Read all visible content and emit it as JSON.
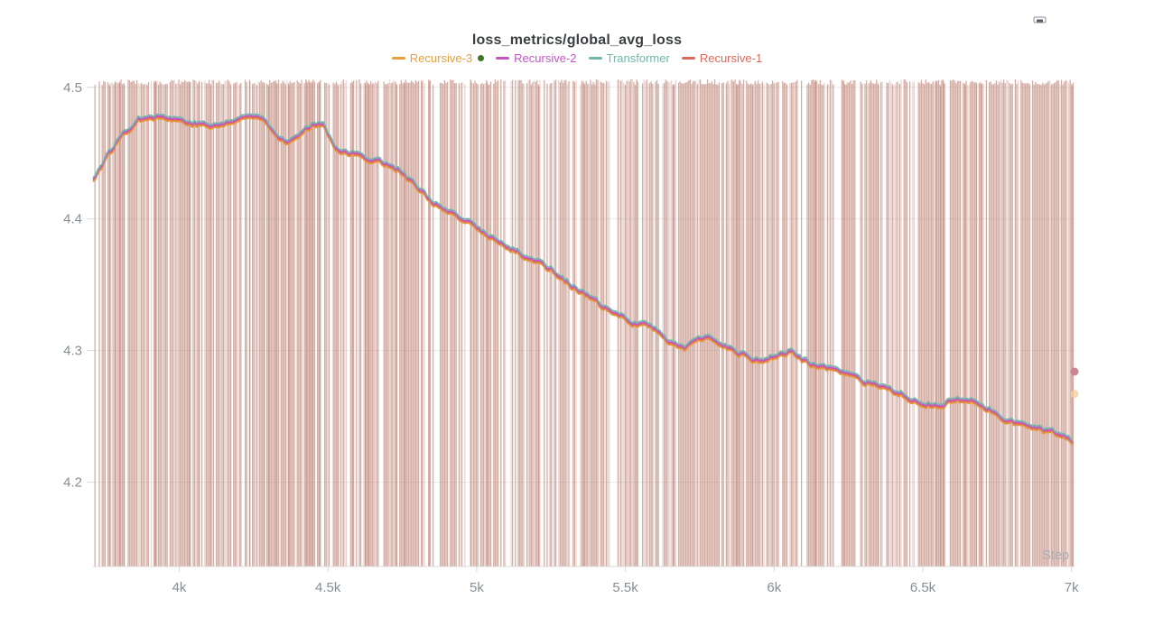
{
  "panel": {
    "title": "loss_metrics/global_avg_loss",
    "step_label": "Step",
    "corner_icon": "panel-options"
  },
  "legend": {
    "items": [
      {
        "label": "Recursive-3",
        "color": "#E5A03C"
      },
      {
        "label": "Recursive-2",
        "color": "#C356C4"
      },
      {
        "label": "Transformer",
        "color": "#74B6AB"
      },
      {
        "label": "Recursive-1",
        "color": "#DF685C"
      }
    ],
    "dot_marker": {
      "color": "#3E7823",
      "position_after": "Recursive-3"
    }
  },
  "chart_data": {
    "type": "line",
    "title": "loss_metrics/global_avg_loss",
    "xlabel": "Step",
    "ylabel": "",
    "xlim": [
      3710,
      7010
    ],
    "ylim": [
      4.136,
      4.506
    ],
    "grid": "horizontal-faint",
    "legend_position": "top-center",
    "xticks": [
      {
        "value": 4000,
        "label": "4k"
      },
      {
        "value": 4500,
        "label": "4.5k"
      },
      {
        "value": 5000,
        "label": "5k"
      },
      {
        "value": 5500,
        "label": "5.5k"
      },
      {
        "value": 6000,
        "label": "6k"
      },
      {
        "value": 6500,
        "label": "6.5k"
      },
      {
        "value": 7000,
        "label": "7k"
      }
    ],
    "yticks": [
      {
        "value": 4.5,
        "label": "4.5"
      },
      {
        "value": 4.4,
        "label": "4.4"
      },
      {
        "value": 4.3,
        "label": "4.3"
      },
      {
        "value": 4.2,
        "label": "4.2"
      }
    ],
    "x": [
      3710,
      3760,
      3810,
      3860,
      3900,
      3950,
      4000,
      4060,
      4120,
      4180,
      4240,
      4290,
      4330,
      4370,
      4410,
      4450,
      4480,
      4520,
      4560,
      4620,
      4680,
      4740,
      4800,
      4860,
      4920,
      4980,
      5040,
      5100,
      5160,
      5220,
      5280,
      5340,
      5400,
      5460,
      5520,
      5580,
      5640,
      5700,
      5760,
      5820,
      5880,
      5940,
      6000,
      6060,
      6120,
      6180,
      6240,
      6300,
      6360,
      6420,
      6480,
      6540,
      6600,
      6660,
      6720,
      6780,
      6840,
      6900,
      6950,
      7000
    ],
    "smoothed_avg_loss": [
      4.43,
      4.448,
      4.464,
      4.475,
      4.479,
      4.477,
      4.475,
      4.472,
      4.47,
      4.474,
      4.478,
      4.476,
      4.463,
      4.458,
      4.464,
      4.472,
      4.474,
      4.456,
      4.45,
      4.447,
      4.443,
      4.437,
      4.423,
      4.411,
      4.402,
      4.396,
      4.387,
      4.378,
      4.372,
      4.366,
      4.357,
      4.345,
      4.337,
      4.327,
      4.322,
      4.319,
      4.308,
      4.302,
      4.309,
      4.305,
      4.298,
      4.292,
      4.295,
      4.299,
      4.289,
      4.287,
      4.281,
      4.276,
      4.271,
      4.267,
      4.262,
      4.258,
      4.261,
      4.262,
      4.255,
      4.248,
      4.243,
      4.239,
      4.236,
      4.231
    ],
    "series": [
      {
        "name": "Recursive-3",
        "color": "#E5973C",
        "offset": -0.0014,
        "z": 2
      },
      {
        "name": "Recursive-2",
        "color": "#C356C4",
        "offset": 0.0006,
        "z": 3
      },
      {
        "name": "Transformer",
        "color": "#74B6AB",
        "offset": 0.0019,
        "z": 4
      },
      {
        "name": "Recursive-1",
        "color": "#DF685C",
        "offset": -0.0004,
        "z": 1
      }
    ],
    "raw_noise_band": {
      "description": "unsmoothed raw loss drawn as dense vertical salmon streaks with white gaps spanning full plot height",
      "color": "#B97A6C",
      "opacity": 0.62,
      "gap_fraction": 0.13
    },
    "endpoint_markers": [
      {
        "step": 7010,
        "value": 4.284,
        "color": "#C9818D",
        "opacity": 0.95
      },
      {
        "step": 7010,
        "value": 4.267,
        "color": "#F4CFA3",
        "opacity": 0.8
      }
    ],
    "axis_label_color": "#868E96",
    "axis_line_color": "#D8D8D8",
    "step_label_color": "#A9AEB2"
  }
}
